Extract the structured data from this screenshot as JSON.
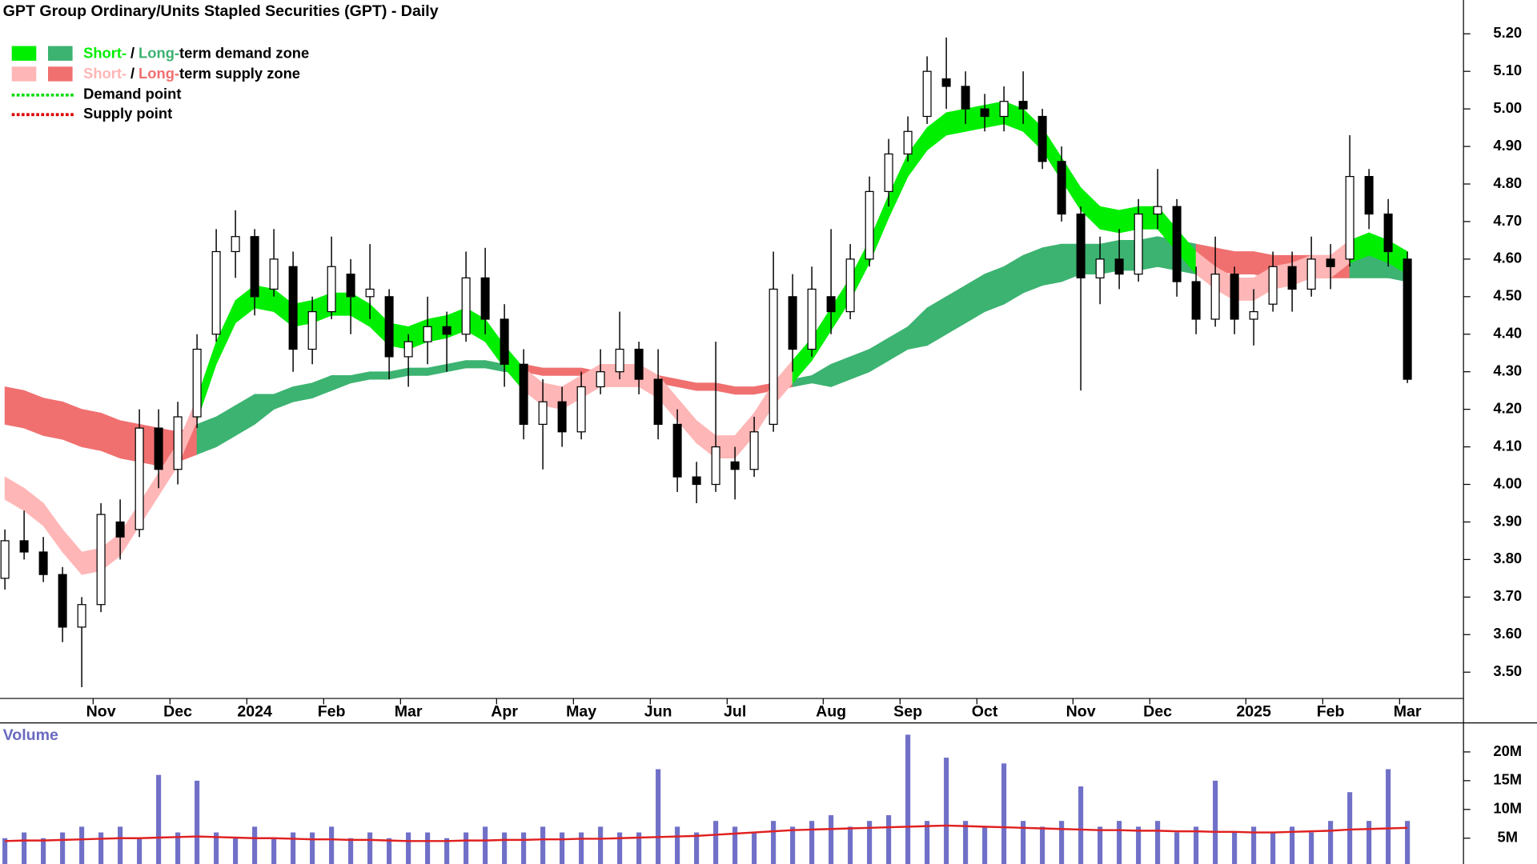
{
  "chart_data": {
    "type": "candlestick",
    "title": "GPT Group Ordinary/Units Stapled Securities (GPT) - Daily",
    "zone_colors": {
      "short_demand": "#00ee00",
      "long_demand": "#3cb371",
      "short_supply": "#ffb6b6",
      "long_supply": "#f07070"
    },
    "legend": {
      "demand_zone": {
        "short": "Short-",
        "separator": "/",
        "long": "Long-",
        "text": "term demand zone"
      },
      "supply_zone": {
        "short": "Short-",
        "separator": "/",
        "long": "Long-",
        "text": "term supply zone"
      },
      "demand_point": "Demand point",
      "demand_point_color": "#00dd00",
      "supply_point": "Supply point",
      "supply_point_color": "#dd0000"
    },
    "open": [
      3.75,
      3.85,
      3.82,
      3.76,
      3.62,
      3.68,
      3.9,
      3.88,
      4.15,
      4.04,
      4.18,
      4.4,
      4.62,
      4.66,
      4.52,
      4.58,
      4.36,
      4.46,
      4.56,
      4.5,
      4.5,
      4.34,
      4.38,
      4.42,
      4.4,
      4.55,
      4.44,
      4.32,
      4.16,
      4.22,
      4.14,
      4.26,
      4.3,
      4.36,
      4.28,
      4.16,
      4.02,
      4.0,
      4.06,
      4.04,
      4.16,
      4.5,
      4.36,
      4.5,
      4.46,
      4.6,
      4.78,
      4.88,
      4.98,
      5.08,
      5.06,
      5.0,
      4.98,
      5.02,
      4.98,
      4.86,
      4.72,
      4.55,
      4.6,
      4.56,
      4.72,
      4.74,
      4.54,
      4.44,
      4.56,
      4.44,
      4.48,
      4.58,
      4.52,
      4.6,
      4.6,
      4.82,
      4.72,
      4.6
    ],
    "high": [
      3.88,
      3.93,
      3.86,
      3.78,
      3.7,
      3.95,
      3.96,
      4.2,
      4.2,
      4.22,
      4.4,
      4.68,
      4.73,
      4.68,
      4.68,
      4.62,
      4.5,
      4.66,
      4.6,
      4.64,
      4.52,
      4.4,
      4.5,
      4.46,
      4.62,
      4.63,
      4.48,
      4.36,
      4.28,
      4.26,
      4.3,
      4.36,
      4.46,
      4.38,
      4.36,
      4.2,
      4.06,
      4.38,
      4.1,
      4.18,
      4.62,
      4.56,
      4.58,
      4.68,
      4.64,
      4.82,
      4.92,
      4.98,
      5.14,
      5.19,
      5.1,
      5.04,
      5.06,
      5.1,
      5.0,
      4.9,
      4.74,
      4.66,
      4.68,
      4.76,
      4.84,
      4.76,
      4.58,
      4.66,
      4.58,
      4.52,
      4.62,
      4.62,
      4.66,
      4.64,
      4.93,
      4.84,
      4.76,
      4.62
    ],
    "low": [
      3.72,
      3.8,
      3.74,
      3.58,
      3.46,
      3.66,
      3.8,
      3.86,
      3.99,
      4.0,
      4.15,
      4.38,
      4.55,
      4.45,
      4.5,
      4.3,
      4.32,
      4.44,
      4.4,
      4.44,
      4.28,
      4.26,
      4.32,
      4.3,
      4.38,
      4.4,
      4.26,
      4.12,
      4.04,
      4.1,
      4.12,
      4.24,
      4.28,
      4.24,
      4.12,
      3.98,
      3.95,
      3.98,
      3.96,
      4.02,
      4.14,
      4.3,
      4.34,
      4.4,
      4.44,
      4.58,
      4.74,
      4.86,
      4.96,
      5.0,
      4.96,
      4.94,
      4.94,
      4.96,
      4.84,
      4.7,
      4.25,
      4.48,
      4.52,
      4.54,
      4.68,
      4.5,
      4.4,
      4.42,
      4.4,
      4.37,
      4.46,
      4.46,
      4.5,
      4.52,
      4.58,
      4.68,
      4.58,
      4.27
    ],
    "close": [
      3.85,
      3.82,
      3.76,
      3.62,
      3.68,
      3.92,
      3.86,
      4.15,
      4.04,
      4.18,
      4.36,
      4.62,
      4.66,
      4.5,
      4.6,
      4.36,
      4.46,
      4.58,
      4.5,
      4.52,
      4.34,
      4.38,
      4.42,
      4.4,
      4.55,
      4.44,
      4.32,
      4.16,
      4.22,
      4.14,
      4.26,
      4.3,
      4.36,
      4.28,
      4.16,
      4.02,
      4.0,
      4.1,
      4.04,
      4.14,
      4.52,
      4.36,
      4.52,
      4.46,
      4.6,
      4.78,
      4.88,
      4.94,
      5.1,
      5.06,
      5.0,
      4.98,
      5.02,
      5.0,
      4.86,
      4.72,
      4.55,
      4.6,
      4.56,
      4.72,
      4.74,
      4.54,
      4.44,
      4.56,
      4.44,
      4.46,
      4.58,
      4.52,
      4.6,
      4.58,
      4.82,
      4.72,
      4.62,
      4.28
    ],
    "short_zone": {
      "upper": [
        4.02,
        3.99,
        3.95,
        3.88,
        3.82,
        3.83,
        3.87,
        3.95,
        4.03,
        4.11,
        4.23,
        4.38,
        4.49,
        4.53,
        4.52,
        4.48,
        4.49,
        4.51,
        4.51,
        4.48,
        4.43,
        4.42,
        4.44,
        4.45,
        4.47,
        4.44,
        4.37,
        4.31,
        4.27,
        4.26,
        4.29,
        4.32,
        4.32,
        4.32,
        4.29,
        4.23,
        4.17,
        4.13,
        4.13,
        4.19,
        4.27,
        4.33,
        4.39,
        4.47,
        4.55,
        4.65,
        4.77,
        4.88,
        4.95,
        4.99,
        5.0,
        5.01,
        5.02,
        5.0,
        4.95,
        4.87,
        4.79,
        4.74,
        4.73,
        4.74,
        4.74,
        4.68,
        4.62,
        4.58,
        4.55,
        4.55,
        4.58,
        4.59,
        4.61,
        4.61,
        4.65,
        4.67,
        4.65,
        4.62
      ],
      "lower": [
        3.96,
        3.93,
        3.89,
        3.82,
        3.76,
        3.77,
        3.81,
        3.89,
        3.97,
        4.05,
        4.17,
        4.32,
        4.43,
        4.47,
        4.46,
        4.42,
        4.43,
        4.45,
        4.45,
        4.42,
        4.37,
        4.36,
        4.38,
        4.39,
        4.41,
        4.38,
        4.31,
        4.25,
        4.21,
        4.2,
        4.23,
        4.26,
        4.26,
        4.26,
        4.23,
        4.17,
        4.11,
        4.07,
        4.07,
        4.13,
        4.21,
        4.27,
        4.33,
        4.41,
        4.49,
        4.59,
        4.71,
        4.82,
        4.89,
        4.93,
        4.94,
        4.95,
        4.96,
        4.94,
        4.89,
        4.81,
        4.73,
        4.68,
        4.67,
        4.68,
        4.68,
        4.62,
        4.56,
        4.52,
        4.49,
        4.49,
        4.52,
        4.53,
        4.55,
        4.55,
        4.59,
        4.61,
        4.59,
        4.56
      ]
    },
    "long_zone": {
      "upper": [
        4.26,
        4.25,
        4.23,
        4.22,
        4.2,
        4.19,
        4.17,
        4.16,
        4.15,
        4.14,
        4.16,
        4.18,
        4.21,
        4.24,
        4.24,
        4.26,
        4.27,
        4.29,
        4.29,
        4.3,
        4.3,
        4.31,
        4.31,
        4.32,
        4.33,
        4.33,
        4.32,
        4.32,
        4.31,
        4.31,
        4.31,
        4.3,
        4.3,
        4.3,
        4.29,
        4.28,
        4.27,
        4.27,
        4.26,
        4.26,
        4.27,
        4.28,
        4.29,
        4.32,
        4.34,
        4.36,
        4.39,
        4.42,
        4.47,
        4.5,
        4.53,
        4.56,
        4.58,
        4.61,
        4.63,
        4.64,
        4.64,
        4.64,
        4.65,
        4.65,
        4.66,
        4.65,
        4.64,
        4.63,
        4.62,
        4.62,
        4.61,
        4.61,
        4.61,
        4.61,
        4.61,
        4.61,
        4.61,
        4.6
      ],
      "lower": [
        4.16,
        4.15,
        4.13,
        4.12,
        4.1,
        4.09,
        4.07,
        4.06,
        4.05,
        4.06,
        4.08,
        4.1,
        4.13,
        4.16,
        4.2,
        4.22,
        4.23,
        4.25,
        4.27,
        4.28,
        4.28,
        4.29,
        4.29,
        4.3,
        4.31,
        4.31,
        4.3,
        4.3,
        4.29,
        4.29,
        4.29,
        4.28,
        4.28,
        4.28,
        4.27,
        4.26,
        4.25,
        4.25,
        4.24,
        4.24,
        4.25,
        4.26,
        4.27,
        4.26,
        4.28,
        4.3,
        4.33,
        4.36,
        4.37,
        4.4,
        4.43,
        4.46,
        4.48,
        4.51,
        4.53,
        4.54,
        4.56,
        4.56,
        4.57,
        4.57,
        4.58,
        4.57,
        4.56,
        4.57,
        4.56,
        4.56,
        4.55,
        4.55,
        4.55,
        4.55,
        4.55,
        4.55,
        4.55,
        4.54
      ]
    },
    "xticks": [
      {
        "value": 5,
        "label": "Nov"
      },
      {
        "value": 9,
        "label": "Dec"
      },
      {
        "value": 13,
        "label": "2024"
      },
      {
        "value": 17,
        "label": "Feb"
      },
      {
        "value": 21,
        "label": "Mar"
      },
      {
        "value": 26,
        "label": "Apr"
      },
      {
        "value": 30,
        "label": "May"
      },
      {
        "value": 34,
        "label": "Jun"
      },
      {
        "value": 38,
        "label": "Jul"
      },
      {
        "value": 43,
        "label": "Aug"
      },
      {
        "value": 47,
        "label": "Sep"
      },
      {
        "value": 51,
        "label": "Oct"
      },
      {
        "value": 56,
        "label": "Nov"
      },
      {
        "value": 60,
        "label": "Dec"
      },
      {
        "value": 65,
        "label": "2025"
      },
      {
        "value": 69,
        "label": "Feb"
      },
      {
        "value": 73,
        "label": "Mar"
      }
    ],
    "ylim": [
      3.43,
      5.29
    ],
    "yticks": [
      {
        "value": 3.5,
        "label": "3.50"
      },
      {
        "value": 3.6,
        "label": "3.60"
      },
      {
        "value": 3.7,
        "label": "3.70"
      },
      {
        "value": 3.8,
        "label": "3.80"
      },
      {
        "value": 3.9,
        "label": "3.90"
      },
      {
        "value": 4.0,
        "label": "4.00"
      },
      {
        "value": 4.1,
        "label": "4.10"
      },
      {
        "value": 4.2,
        "label": "4.20"
      },
      {
        "value": 4.3,
        "label": "4.30"
      },
      {
        "value": 4.4,
        "label": "4.40"
      },
      {
        "value": 4.5,
        "label": "4.50"
      },
      {
        "value": 4.6,
        "label": "4.60"
      },
      {
        "value": 4.7,
        "label": "4.70"
      },
      {
        "value": 4.8,
        "label": "4.80"
      },
      {
        "value": 4.9,
        "label": "4.90"
      },
      {
        "value": 5.0,
        "label": "5.00"
      },
      {
        "value": 5.1,
        "label": "5.10"
      },
      {
        "value": 5.2,
        "label": "5.20"
      }
    ],
    "volume": {
      "label": "Volume",
      "color": "#7070c8",
      "ma_color": "#e02020",
      "values": [
        5,
        6,
        5,
        6,
        7,
        6,
        7,
        5,
        16,
        6,
        15,
        6,
        5,
        7,
        5,
        6,
        6,
        7,
        5,
        6,
        5,
        6,
        6,
        5,
        6,
        7,
        6,
        6,
        7,
        6,
        6,
        7,
        6,
        6,
        17,
        7,
        6,
        8,
        7,
        6,
        8,
        7,
        8,
        9,
        7,
        8,
        9,
        23,
        8,
        19,
        8,
        7,
        18,
        8,
        7,
        8,
        14,
        7,
        8,
        7,
        8,
        6,
        7,
        15,
        6,
        7,
        6,
        7,
        6,
        8,
        13,
        8,
        17,
        8
      ],
      "ma": [
        4.5,
        4.6,
        4.6,
        4.7,
        4.8,
        4.9,
        5,
        5,
        5.1,
        5.2,
        5.3,
        5.2,
        5.1,
        5,
        5,
        4.9,
        4.8,
        4.8,
        4.7,
        4.7,
        4.6,
        4.5,
        4.5,
        4.5,
        4.6,
        4.6,
        4.7,
        4.7,
        4.8,
        4.8,
        4.9,
        4.9,
        5,
        5.1,
        5.2,
        5.3,
        5.4,
        5.6,
        5.8,
        6,
        6.2,
        6.4,
        6.5,
        6.6,
        6.7,
        6.8,
        6.9,
        7,
        7.1,
        7.2,
        7.1,
        7,
        6.9,
        6.8,
        6.7,
        6.6,
        6.5,
        6.4,
        6.4,
        6.3,
        6.3,
        6.2,
        6.2,
        6.1,
        6.1,
        6,
        6,
        6.1,
        6.2,
        6.3,
        6.5,
        6.6,
        6.7,
        6.8
      ],
      "ylim": [
        0,
        24.7
      ],
      "yticks": [
        {
          "value": 5,
          "label": "5M"
        },
        {
          "value": 10,
          "label": "10M"
        },
        {
          "value": 15,
          "label": "15M"
        },
        {
          "value": 20,
          "label": "20M"
        }
      ]
    }
  }
}
